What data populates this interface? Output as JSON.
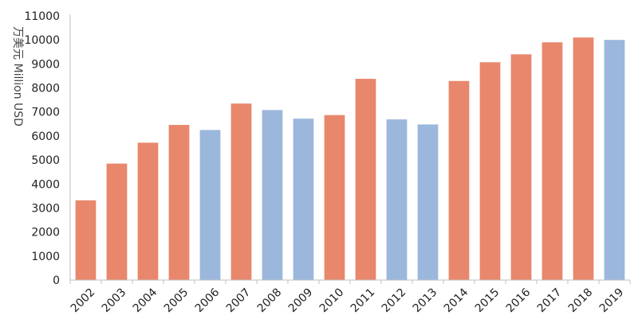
{
  "chart_data": {
    "type": "bar",
    "title": "",
    "xlabel": "",
    "ylabel": "万美元 Million USD",
    "ylim": [
      0,
      11000
    ],
    "yticks": [
      0,
      1000,
      2000,
      3000,
      4000,
      5000,
      6000,
      7000,
      8000,
      9000,
      10000,
      11000
    ],
    "grid": false,
    "categories": [
      "2002",
      "2003",
      "2004",
      "2005",
      "2006",
      "2007",
      "2008",
      "2009",
      "2010",
      "2011",
      "2012",
      "2013",
      "2014",
      "2015",
      "2016",
      "2017",
      "2018",
      "2019"
    ],
    "values": [
      3320,
      4850,
      5720,
      6460,
      6250,
      7350,
      7080,
      6720,
      6870,
      8380,
      6690,
      6480,
      8290,
      9070,
      9400,
      9900,
      10100,
      10000
    ],
    "bar_colors": [
      "#e8876c",
      "#e8876c",
      "#e8876c",
      "#e8876c",
      "#9bb7dc",
      "#e8876c",
      "#9bb7dc",
      "#9bb7dc",
      "#e8876c",
      "#e8876c",
      "#9bb7dc",
      "#9bb7dc",
      "#e8876c",
      "#e8876c",
      "#e8876c",
      "#e8876c",
      "#e8876c",
      "#9bb7dc"
    ],
    "colors": {
      "increase": "#e8876c",
      "decrease": "#9bb7dc",
      "axis": "#bfbfbf",
      "text": "#222222"
    }
  }
}
